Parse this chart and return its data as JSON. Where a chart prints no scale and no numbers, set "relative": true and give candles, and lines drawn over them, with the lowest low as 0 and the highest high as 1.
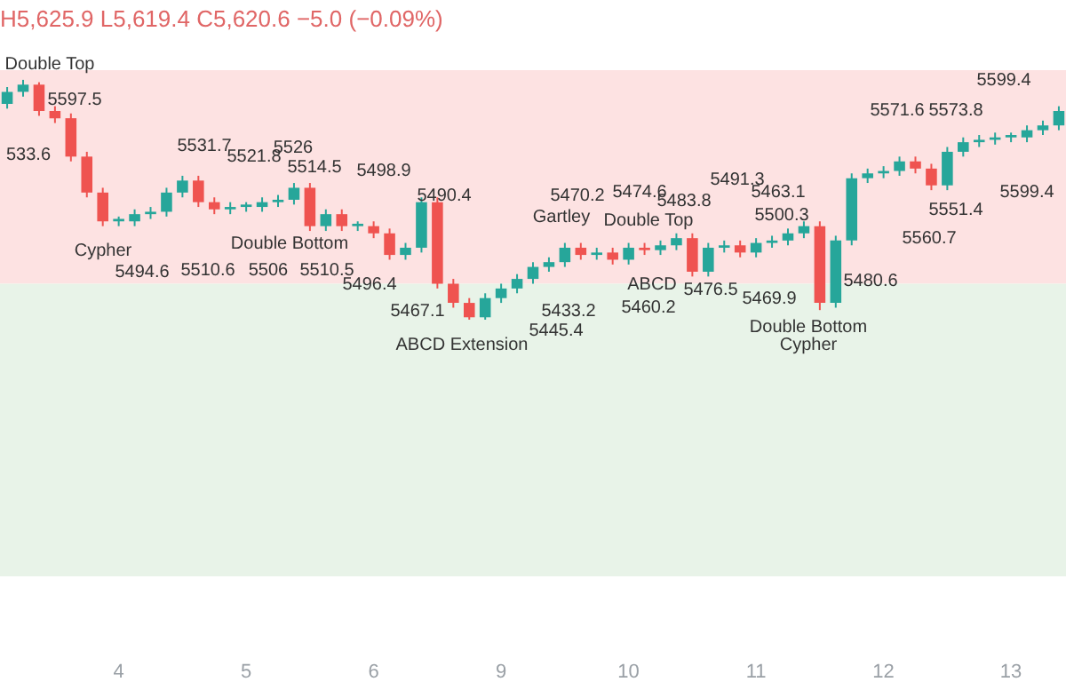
{
  "chart_data": {
    "type": "candlestick",
    "relative": true,
    "title": "H5,625.9 L5,619.4 C5,620.6 −5.0 (−0.09%)",
    "categories": [
      null,
      null,
      null,
      null,
      null,
      null,
      null,
      "4",
      null,
      null,
      null,
      null,
      null,
      null,
      null,
      "5",
      null,
      null,
      null,
      null,
      null,
      null,
      null,
      "6",
      null,
      null,
      null,
      null,
      null,
      null,
      null,
      "9",
      null,
      null,
      null,
      null,
      null,
      null,
      null,
      "10",
      null,
      null,
      null,
      null,
      null,
      null,
      null,
      "11",
      null,
      null,
      null,
      null,
      null,
      null,
      null,
      "12",
      null,
      null,
      null,
      null,
      null,
      null,
      null,
      "13",
      null,
      null,
      null
    ],
    "colors": [
      "#26a69a",
      "#26a69a",
      "#ef5350",
      "#ef5350",
      "#ef5350",
      "#ef5350",
      "#ef5350",
      "#26a69a",
      "#26a69a",
      "#26a69a",
      "#26a69a",
      "#26a69a",
      "#ef5350",
      "#ef5350",
      "#26a69a",
      "#26a69a",
      "#26a69a",
      "#26a69a",
      "#26a69a",
      "#ef5350",
      "#26a69a",
      "#ef5350",
      "#26a69a",
      "#ef5350",
      "#ef5350",
      "#26a69a",
      "#26a69a",
      "#ef5350",
      "#ef5350",
      "#ef5350",
      "#26a69a",
      "#26a69a",
      "#26a69a",
      "#26a69a",
      "#26a69a",
      "#26a69a",
      "#ef5350",
      "#26a69a",
      "#ef5350",
      "#26a69a",
      "#ef5350",
      "#26a69a",
      "#26a69a",
      "#ef5350",
      "#26a69a",
      "#26a69a",
      "#ef5350",
      "#26a69a",
      "#26a69a",
      "#26a69a",
      "#26a69a",
      "#ef5350",
      "#26a69a",
      "#26a69a",
      "#26a69a",
      "#26a69a",
      "#26a69a",
      "#ef5350",
      "#ef5350",
      "#26a69a",
      "#26a69a",
      "#26a69a",
      "#26a69a",
      "#26a69a",
      "#26a69a",
      "#26a69a",
      "#26a69a"
    ],
    "ohlc": [
      [
        0.9,
        0.97,
        0.88,
        0.95
      ],
      [
        0.95,
        1.0,
        0.93,
        0.98
      ],
      [
        0.98,
        0.99,
        0.85,
        0.87
      ],
      [
        0.87,
        0.89,
        0.82,
        0.84
      ],
      [
        0.84,
        0.86,
        0.66,
        0.68
      ],
      [
        0.68,
        0.7,
        0.51,
        0.53
      ],
      [
        0.53,
        0.55,
        0.39,
        0.41
      ],
      [
        0.41,
        0.43,
        0.39,
        0.42
      ],
      [
        0.41,
        0.46,
        0.39,
        0.44
      ],
      [
        0.44,
        0.47,
        0.42,
        0.45
      ],
      [
        0.45,
        0.55,
        0.43,
        0.53
      ],
      [
        0.53,
        0.6,
        0.51,
        0.58
      ],
      [
        0.58,
        0.6,
        0.47,
        0.49
      ],
      [
        0.49,
        0.51,
        0.44,
        0.46
      ],
      [
        0.46,
        0.49,
        0.44,
        0.47
      ],
      [
        0.47,
        0.49,
        0.45,
        0.48
      ],
      [
        0.47,
        0.51,
        0.45,
        0.49
      ],
      [
        0.49,
        0.52,
        0.47,
        0.5
      ],
      [
        0.5,
        0.57,
        0.48,
        0.55
      ],
      [
        0.55,
        0.57,
        0.37,
        0.39
      ],
      [
        0.39,
        0.46,
        0.37,
        0.44
      ],
      [
        0.44,
        0.46,
        0.37,
        0.39
      ],
      [
        0.39,
        0.41,
        0.37,
        0.4
      ],
      [
        0.39,
        0.41,
        0.34,
        0.36
      ],
      [
        0.36,
        0.38,
        0.25,
        0.27
      ],
      [
        0.27,
        0.32,
        0.25,
        0.3
      ],
      [
        0.3,
        0.51,
        0.28,
        0.49
      ],
      [
        0.49,
        0.51,
        0.13,
        0.15
      ],
      [
        0.15,
        0.17,
        0.05,
        0.07
      ],
      [
        0.07,
        0.09,
        0.0,
        0.01
      ],
      [
        0.01,
        0.11,
        0.0,
        0.09
      ],
      [
        0.09,
        0.15,
        0.07,
        0.13
      ],
      [
        0.13,
        0.19,
        0.11,
        0.17
      ],
      [
        0.17,
        0.24,
        0.15,
        0.22
      ],
      [
        0.22,
        0.26,
        0.2,
        0.24
      ],
      [
        0.24,
        0.32,
        0.22,
        0.3
      ],
      [
        0.3,
        0.32,
        0.25,
        0.27
      ],
      [
        0.27,
        0.3,
        0.25,
        0.28
      ],
      [
        0.28,
        0.3,
        0.23,
        0.25
      ],
      [
        0.25,
        0.32,
        0.23,
        0.3
      ],
      [
        0.3,
        0.32,
        0.27,
        0.29
      ],
      [
        0.29,
        0.33,
        0.27,
        0.31
      ],
      [
        0.31,
        0.36,
        0.29,
        0.34
      ],
      [
        0.34,
        0.36,
        0.18,
        0.2
      ],
      [
        0.2,
        0.32,
        0.18,
        0.3
      ],
      [
        0.3,
        0.33,
        0.28,
        0.31
      ],
      [
        0.31,
        0.33,
        0.26,
        0.28
      ],
      [
        0.28,
        0.34,
        0.26,
        0.32
      ],
      [
        0.32,
        0.35,
        0.3,
        0.33
      ],
      [
        0.33,
        0.38,
        0.31,
        0.36
      ],
      [
        0.36,
        0.41,
        0.34,
        0.39
      ],
      [
        0.39,
        0.41,
        0.04,
        0.07
      ],
      [
        0.07,
        0.35,
        0.05,
        0.33
      ],
      [
        0.33,
        0.61,
        0.31,
        0.59
      ],
      [
        0.59,
        0.63,
        0.57,
        0.61
      ],
      [
        0.61,
        0.64,
        0.59,
        0.62
      ],
      [
        0.62,
        0.68,
        0.6,
        0.66
      ],
      [
        0.66,
        0.68,
        0.61,
        0.63
      ],
      [
        0.63,
        0.65,
        0.54,
        0.56
      ],
      [
        0.56,
        0.72,
        0.54,
        0.7
      ],
      [
        0.7,
        0.76,
        0.68,
        0.74
      ],
      [
        0.74,
        0.77,
        0.72,
        0.75
      ],
      [
        0.75,
        0.78,
        0.73,
        0.76
      ],
      [
        0.76,
        0.78,
        0.74,
        0.77
      ],
      [
        0.76,
        0.81,
        0.74,
        0.79
      ],
      [
        0.79,
        0.83,
        0.77,
        0.81
      ],
      [
        0.81,
        0.89,
        0.79,
        0.87
      ]
    ],
    "bands": [
      {
        "axis": "y",
        "from": 0.15,
        "to": 1.04,
        "color": "#fde2e2"
      },
      {
        "axis": "y",
        "from": -1.07,
        "to": 0.15,
        "color": "#e8f3e8"
      }
    ],
    "annotations": [
      "Double Top",
      "5597.5",
      "533.6",
      "5531.7",
      "5521.8",
      "5526",
      "5514.5",
      "5498.9",
      "5490.4",
      "Cypher",
      "5494.6",
      "5510.6",
      "5506",
      "5510.5",
      "Double Bottom",
      "5496.4",
      "5467.1",
      "ABCD Extension",
      "5445.4",
      "5433.2",
      "5470.2",
      "5474.6",
      "Gartley",
      "Double Top",
      "5483.8",
      "5491.3",
      "ABCD",
      "5476.5",
      "5460.2",
      "5469.9",
      "5480.6",
      "5500.3",
      "5463.1",
      "Double Bottom",
      "Cypher",
      "5560.7",
      "5551.4",
      "5599.4",
      "5571.6",
      "5573.8",
      "5599.4"
    ]
  }
}
